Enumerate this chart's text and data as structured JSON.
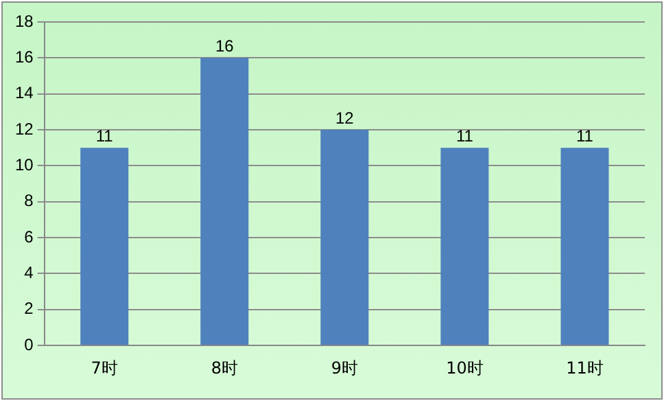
{
  "chart_data": {
    "type": "bar",
    "categories": [
      "7时",
      "8时",
      "9时",
      "10时",
      "11时"
    ],
    "values": [
      11,
      16,
      12,
      11,
      11
    ],
    "color": "#4f81bd",
    "ylim": [
      0,
      18
    ],
    "yticks": [
      0,
      2,
      4,
      6,
      8,
      10,
      12,
      14,
      16,
      18
    ],
    "grid": "y",
    "legend": false,
    "data_labels": true
  }
}
